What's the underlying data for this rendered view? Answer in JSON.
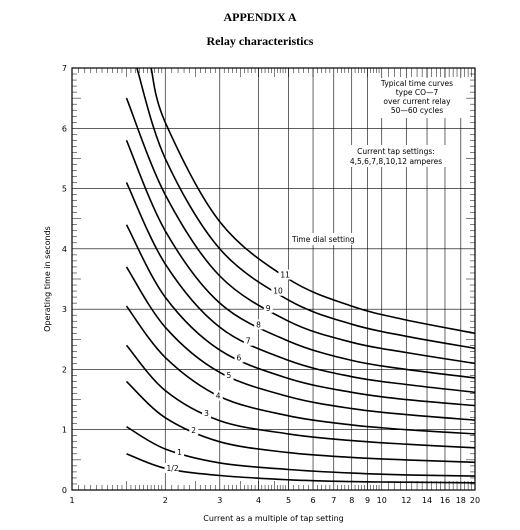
{
  "header": {
    "appendix": "APPENDIX A",
    "subtitle": "Relay characteristics"
  },
  "chart_data": {
    "type": "line",
    "xscale": "log",
    "xlim": [
      1,
      20
    ],
    "ylim": [
      0,
      7
    ],
    "grid": true,
    "xlabel": "Current as a multiple of tap setting",
    "ylabel": "Operating time in seconds",
    "x_ticks": [
      "1",
      "2",
      "3",
      "4",
      "5",
      "6",
      "7",
      "8",
      "9",
      "10",
      "12",
      "14",
      "16",
      "18",
      "20"
    ],
    "y_ticks": [
      "0",
      "1",
      "2",
      "3",
      "4",
      "5",
      "6",
      "7"
    ],
    "notes": [
      "Typical time curves",
      "type CO—7",
      "over current relay",
      "50—60 cycles",
      "Current tap settings:",
      "4,5,6,7,8,10,12 amperes"
    ],
    "dial_label": "Time dial setting",
    "series": [
      {
        "name": "1/2",
        "x": [
          1.5,
          2,
          3,
          5,
          8,
          12,
          20
        ],
        "y": [
          0.6,
          0.36,
          0.24,
          0.17,
          0.14,
          0.13,
          0.12
        ]
      },
      {
        "name": "1",
        "x": [
          1.5,
          2,
          3,
          5,
          8,
          12,
          20
        ],
        "y": [
          1.05,
          0.68,
          0.45,
          0.34,
          0.28,
          0.25,
          0.23
        ]
      },
      {
        "name": "2",
        "x": [
          1.5,
          2,
          3,
          5,
          8,
          12,
          20
        ],
        "y": [
          1.8,
          1.2,
          0.8,
          0.62,
          0.54,
          0.5,
          0.46
        ]
      },
      {
        "name": "3",
        "x": [
          1.5,
          2,
          3,
          5,
          8,
          12,
          20
        ],
        "y": [
          2.4,
          1.65,
          1.15,
          0.93,
          0.82,
          0.76,
          0.7
        ]
      },
      {
        "name": "4",
        "x": [
          1.5,
          2,
          3,
          5,
          8,
          12,
          20
        ],
        "y": [
          3.05,
          2.2,
          1.55,
          1.23,
          1.08,
          1.0,
          0.93
        ]
      },
      {
        "name": "5",
        "x": [
          1.5,
          2,
          3,
          5,
          8,
          12,
          20
        ],
        "y": [
          3.7,
          2.7,
          1.95,
          1.55,
          1.35,
          1.25,
          1.16
        ]
      },
      {
        "name": "6",
        "x": [
          1.5,
          2,
          3,
          5,
          8,
          12,
          20
        ],
        "y": [
          4.4,
          3.2,
          2.32,
          1.85,
          1.62,
          1.5,
          1.4
        ]
      },
      {
        "name": "7",
        "x": [
          1.5,
          2,
          3,
          5,
          8,
          12,
          20
        ],
        "y": [
          5.1,
          3.75,
          2.7,
          2.15,
          1.88,
          1.75,
          1.62
        ]
      },
      {
        "name": "8",
        "x": [
          1.5,
          2,
          3,
          5,
          8,
          12,
          20
        ],
        "y": [
          5.8,
          4.3,
          3.1,
          2.47,
          2.15,
          2.0,
          1.86
        ]
      },
      {
        "name": "9",
        "x": [
          1.5,
          2,
          3,
          5,
          8,
          12,
          20
        ],
        "y": [
          6.5,
          4.9,
          3.55,
          2.8,
          2.45,
          2.28,
          2.1
        ]
      },
      {
        "name": "10",
        "x": [
          1.62,
          2,
          3,
          5,
          8,
          12,
          20
        ],
        "y": [
          7.0,
          5.5,
          4.0,
          3.15,
          2.75,
          2.55,
          2.35
        ]
      },
      {
        "name": "11",
        "x": [
          1.8,
          2,
          3,
          5,
          8,
          12,
          20
        ],
        "y": [
          7.0,
          6.1,
          4.45,
          3.5,
          3.05,
          2.82,
          2.6
        ]
      }
    ]
  }
}
